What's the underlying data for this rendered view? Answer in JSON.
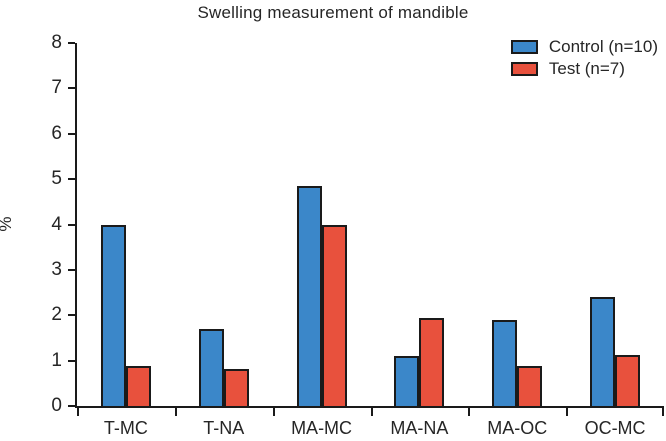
{
  "title": "Swelling measurement of mandible",
  "colors": {
    "control": "#3b87c9",
    "test": "#e8513d",
    "axis": "#1a1a1a",
    "text": "#262626"
  },
  "chart_data": {
    "type": "bar",
    "title": "Swelling measurement of mandible",
    "xlabel": "",
    "ylabel": "%",
    "ylim": [
      0,
      8
    ],
    "ytick_step": 1,
    "yticks": [
      0,
      1,
      2,
      3,
      4,
      5,
      6,
      7,
      8
    ],
    "grid": false,
    "legend_position": "top-right",
    "categories": [
      "T-MC",
      "T-NA",
      "MA-MC",
      "MA-NA",
      "MA-OC",
      "OC-MC"
    ],
    "series": [
      {
        "name": "Control (n=10)",
        "color": "#3b87c9",
        "values": [
          4.0,
          1.7,
          4.85,
          1.1,
          1.9,
          2.4
        ]
      },
      {
        "name": "Test (n=7)",
        "color": "#e8513d",
        "values": [
          0.88,
          0.82,
          4.0,
          1.95,
          0.88,
          1.12
        ]
      }
    ]
  }
}
